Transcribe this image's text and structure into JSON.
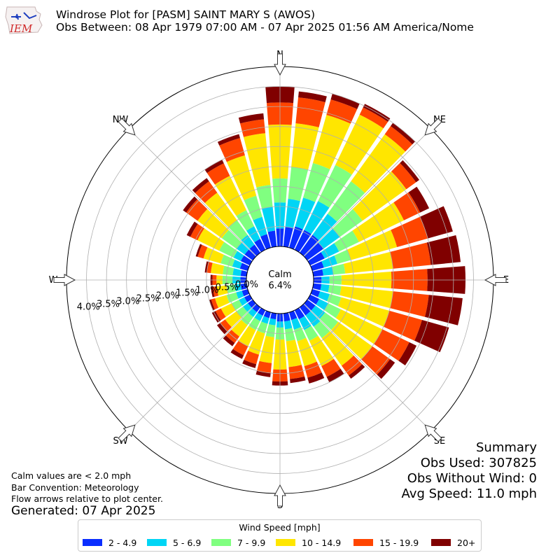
{
  "header": {
    "logo_text": "IEM",
    "title_line1": "Windrose Plot for [PASM] SAINT MARY S (AWOS)",
    "title_line2": "Obs Between: 08 Apr 1979 07:00 AM - 07 Apr 2025 01:56 AM America/Nome"
  },
  "notes": {
    "calm": "Calm values are < 2.0 mph",
    "bar": "Bar Convention: Meteorology",
    "flow": "Flow arrows relative to plot center.",
    "generated": "Generated: 07 Apr 2025"
  },
  "summary": {
    "title": "Summary",
    "obs_used": "Obs Used: 307825",
    "obs_without_wind": "Obs Without Wind: 0",
    "avg_speed": "Avg Speed: 11.0 mph"
  },
  "chart_data": {
    "type": "windrose",
    "calm_label": "Calm",
    "calm_value": "6.4%",
    "calm_percent": 6.4,
    "compass_labels": [
      "N",
      "NE",
      "E",
      "SE",
      "S",
      "SW",
      "W",
      "NW"
    ],
    "radial_ticks": [
      "0.0%",
      "0.5%",
      "1.0%",
      "1.5%",
      "2.0%",
      "2.5%",
      "3.0%",
      "3.5%",
      "4.0%"
    ],
    "radial_max": 4.5,
    "legend_title": "Wind Speed [mph]",
    "speed_bins": [
      {
        "label": "2 - 4.9",
        "color": "#0a2dff"
      },
      {
        "label": "5 - 6.9",
        "color": "#00d5f5"
      },
      {
        "label": "7 - 9.9",
        "color": "#80ff80"
      },
      {
        "label": "10 - 14.9",
        "color": "#ffe600"
      },
      {
        "label": "15 - 19.9",
        "color": "#ff4500"
      },
      {
        "label": "20+",
        "color": "#800000"
      }
    ],
    "directions": [
      0,
      10,
      20,
      30,
      40,
      50,
      60,
      70,
      80,
      90,
      100,
      110,
      120,
      130,
      140,
      150,
      160,
      170,
      180,
      190,
      200,
      210,
      220,
      230,
      240,
      250,
      260,
      270,
      280,
      290,
      300,
      310,
      320,
      330,
      340,
      350
    ],
    "cumulative": [
      [
        0.45,
        1.1,
        1.7,
        3.05,
        3.6,
        4.0
      ],
      [
        0.5,
        1.2,
        2.0,
        3.1,
        3.75,
        3.9
      ],
      [
        0.55,
        1.3,
        2.2,
        3.45,
        3.85,
        4.0
      ],
      [
        0.55,
        1.35,
        2.35,
        3.75,
        3.95,
        4.05
      ],
      [
        0.55,
        1.2,
        2.2,
        3.65,
        3.9,
        4.0
      ],
      [
        0.5,
        1.0,
        1.7,
        3.05,
        3.35,
        3.45
      ],
      [
        0.4,
        0.8,
        1.35,
        2.6,
        3.05,
        3.3
      ],
      [
        0.3,
        0.65,
        1.0,
        2.2,
        3.0,
        3.65
      ],
      [
        0.25,
        0.5,
        0.8,
        2.0,
        2.95,
        3.7
      ],
      [
        0.2,
        0.4,
        0.7,
        1.95,
        2.85,
        3.8
      ],
      [
        0.2,
        0.4,
        0.7,
        2.0,
        2.9,
        3.75
      ],
      [
        0.2,
        0.45,
        0.75,
        2.0,
        2.85,
        3.55
      ],
      [
        0.25,
        0.5,
        0.85,
        2.0,
        2.75,
        2.95
      ],
      [
        0.25,
        0.55,
        0.95,
        2.0,
        2.55,
        2.7
      ],
      [
        0.25,
        0.6,
        0.95,
        1.8,
        2.1,
        2.2
      ],
      [
        0.25,
        0.55,
        0.85,
        1.55,
        1.85,
        2.0
      ],
      [
        0.2,
        0.45,
        0.75,
        1.4,
        1.7,
        1.85
      ],
      [
        0.2,
        0.4,
        0.7,
        1.35,
        1.65,
        1.75
      ],
      [
        0.2,
        0.35,
        0.65,
        1.4,
        1.7,
        1.8
      ],
      [
        0.15,
        0.3,
        0.6,
        1.25,
        1.5,
        1.6
      ],
      [
        0.15,
        0.3,
        0.55,
        1.1,
        1.35,
        1.45
      ],
      [
        0.15,
        0.3,
        0.55,
        1.0,
        1.25,
        1.35
      ],
      [
        0.15,
        0.3,
        0.55,
        0.9,
        1.1,
        1.2
      ],
      [
        0.15,
        0.3,
        0.5,
        0.85,
        1.0,
        1.1
      ],
      [
        0.15,
        0.3,
        0.5,
        0.8,
        0.95,
        1.05
      ],
      [
        0.15,
        0.3,
        0.55,
        0.85,
        0.95,
        1.0
      ],
      [
        0.15,
        0.3,
        0.5,
        0.75,
        0.85,
        0.9
      ],
      [
        0.15,
        0.35,
        0.6,
        0.75,
        0.85,
        0.9
      ],
      [
        0.15,
        0.35,
        0.6,
        0.9,
        1.0,
        1.05
      ],
      [
        0.2,
        0.4,
        0.7,
        1.15,
        1.3,
        1.35
      ],
      [
        0.25,
        0.45,
        0.85,
        1.45,
        1.65,
        1.75
      ],
      [
        0.25,
        0.5,
        0.95,
        1.7,
        2.05,
        2.15
      ],
      [
        0.25,
        0.55,
        1.0,
        1.85,
        2.2,
        2.3
      ],
      [
        0.3,
        0.65,
        1.1,
        2.05,
        2.4,
        2.5
      ],
      [
        0.35,
        0.8,
        1.35,
        2.4,
        2.85,
        2.95
      ],
      [
        0.4,
        1.0,
        1.55,
        2.85,
        3.2,
        3.35
      ]
    ]
  }
}
